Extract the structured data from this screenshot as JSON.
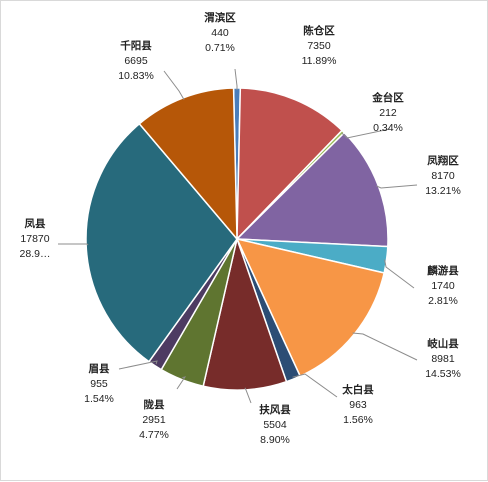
{
  "chart_data": {
    "type": "pie",
    "title": "",
    "slices": [
      {
        "name": "渭滨区",
        "value": 440,
        "percent": "0.71%",
        "color": "#4a7ebb"
      },
      {
        "name": "陈仓区",
        "value": 7350,
        "percent": "11.89%",
        "color": "#c0504d"
      },
      {
        "name": "金台区",
        "value": 212,
        "percent": "0.34%",
        "color": "#9bbb59"
      },
      {
        "name": "凤翔区",
        "value": 8170,
        "percent": "13.21%",
        "color": "#8064a2"
      },
      {
        "name": "麟游县",
        "value": 1740,
        "percent": "2.81%",
        "color": "#4bacc6"
      },
      {
        "name": "岐山县",
        "value": 8981,
        "percent": "14.53%",
        "color": "#f79646"
      },
      {
        "name": "太白县",
        "value": 963,
        "percent": "1.56%",
        "color": "#2c4d75"
      },
      {
        "name": "扶风县",
        "value": 5504,
        "percent": "8.90%",
        "color": "#772c2a"
      },
      {
        "name": "陇县",
        "value": 2951,
        "percent": "4.77%",
        "color": "#5f7530"
      },
      {
        "name": "眉县",
        "value": 955,
        "percent": "1.54%",
        "color": "#4d3b62"
      },
      {
        "name": "凤县",
        "value": 17870,
        "percent": "28.9…",
        "color": "#276a7c"
      },
      {
        "name": "千阳县",
        "value": 6695,
        "percent": "10.83%",
        "color": "#b65708"
      }
    ],
    "legend": "none",
    "data_labels": true
  }
}
